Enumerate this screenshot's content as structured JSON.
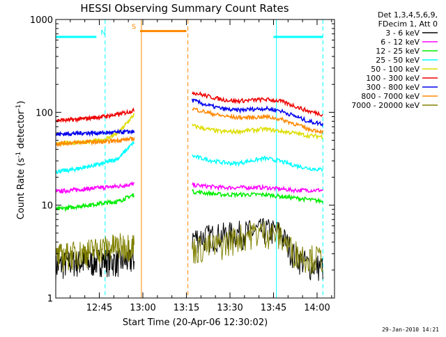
{
  "chart_data": {
    "type": "line",
    "title": "HESSI Observing Summary Count Rates",
    "xlabel": "Start Time (20-Apr-06 12:30:02)",
    "ylabel_prefix": "Count Rate (s",
    "ylabel_sup1": "-1",
    "ylabel_mid": " detector",
    "ylabel_sup2": "-1",
    "ylabel_suffix": ")",
    "yscale": "log",
    "ylim": [
      1,
      1000
    ],
    "xlim_minutes": [
      0,
      96
    ],
    "x_ticks": [
      {
        "label": "12:45",
        "minutes": 15
      },
      {
        "label": "13:00",
        "minutes": 30
      },
      {
        "label": "13:15",
        "minutes": 45
      },
      {
        "label": "13:30",
        "minutes": 60
      },
      {
        "label": "13:45",
        "minutes": 75
      },
      {
        "label": "14:00",
        "minutes": 90
      }
    ],
    "y_ticks": [
      {
        "label": "1",
        "value": 1
      },
      {
        "label": "10",
        "value": 10
      },
      {
        "label": "100",
        "value": 100
      },
      {
        "label": "1000",
        "value": 1000
      }
    ],
    "legend_header": [
      "Det 1,3,4,5,6,9,",
      "FDecim 1, Att 0"
    ],
    "series": [
      {
        "name": "3 - 6 keV",
        "color": "#000000",
        "pre": [
          2.2,
          2.5,
          2.4,
          2.6,
          2.5,
          2.6
        ],
        "post": [
          4.5,
          4.6,
          4.8,
          5.0,
          5.2,
          5.4,
          5.2,
          3.0,
          2.3,
          2.2
        ]
      },
      {
        "name": "6 - 12 keV",
        "color": "#ff00ff",
        "pre": [
          14,
          14.5,
          15,
          15.5,
          16,
          17
        ],
        "post": [
          16.5,
          16,
          15.5,
          15.5,
          15.5,
          15.5,
          15,
          14.5,
          14.5,
          14.5
        ]
      },
      {
        "name": "12 - 25 keV",
        "color": "#00ee00",
        "pre": [
          9,
          9.5,
          10,
          10.5,
          11,
          13
        ],
        "post": [
          14,
          13.5,
          13,
          13,
          13,
          13,
          12.5,
          12,
          11.5,
          11
        ]
      },
      {
        "name": "25 - 50 keV",
        "color": "#00ffff",
        "pre": [
          23,
          24,
          26,
          28,
          32,
          48
        ],
        "post": [
          34,
          31,
          29,
          28,
          30,
          32,
          30,
          27,
          25,
          24
        ]
      },
      {
        "name": "50 - 100 keV",
        "color": "#dddd00",
        "pre": [
          46,
          47,
          48,
          50,
          60,
          95
        ],
        "post": [
          72,
          66,
          62,
          62,
          64,
          66,
          63,
          60,
          56,
          55
        ]
      },
      {
        "name": "100 - 300 keV",
        "color": "#ee0000",
        "pre": [
          82,
          83,
          86,
          90,
          95,
          105
        ],
        "post": [
          165,
          150,
          138,
          132,
          135,
          138,
          133,
          118,
          103,
          95
        ]
      },
      {
        "name": "300 - 800 keV",
        "color": "#0000ee",
        "pre": [
          58,
          59,
          60,
          60,
          61,
          62
        ],
        "post": [
          135,
          120,
          110,
          105,
          108,
          110,
          105,
          92,
          80,
          75
        ]
      },
      {
        "name": "800 - 7000 keV",
        "color": "#ff8800",
        "pre": [
          46,
          47,
          48,
          48,
          50,
          52
        ],
        "post": [
          110,
          100,
          92,
          88,
          88,
          90,
          85,
          76,
          66,
          62
        ]
      },
      {
        "name": "7000 - 20000 keV",
        "color": "#808000",
        "pre": [
          2.8,
          3.0,
          3.2,
          3.5,
          3.7,
          3.8
        ],
        "post": [
          3.4,
          3.6,
          3.8,
          4.5,
          5.0,
          5.2,
          4.8,
          3.2,
          2.8,
          2.7
        ]
      }
    ],
    "pre_segment_minutes": [
      0,
      27
    ],
    "post_segment_minutes": [
      47,
      92
    ],
    "flags": [
      {
        "label": "N",
        "color": "#00ffff",
        "y": 650,
        "segments": [
          [
            0,
            14
          ],
          [
            75,
            92
          ]
        ]
      },
      {
        "label": "S",
        "color": "#ff8800",
        "y": 750,
        "segments": [
          [
            29,
            45
          ]
        ]
      }
    ],
    "vertical_markers": [
      {
        "minutes": 0,
        "color": "#00ffff",
        "dashed": false
      },
      {
        "minutes": 17,
        "color": "#00ffff",
        "dashed": true
      },
      {
        "minutes": 29.5,
        "color": "#ff8800",
        "dashed": false
      },
      {
        "minutes": 45.5,
        "color": "#ff8800",
        "dashed": true
      },
      {
        "minutes": 76,
        "color": "#00ffff",
        "dashed": false
      },
      {
        "minutes": 92,
        "color": "#00ffff",
        "dashed": true
      }
    ]
  },
  "footer": "29-Jan-2010 14:21"
}
